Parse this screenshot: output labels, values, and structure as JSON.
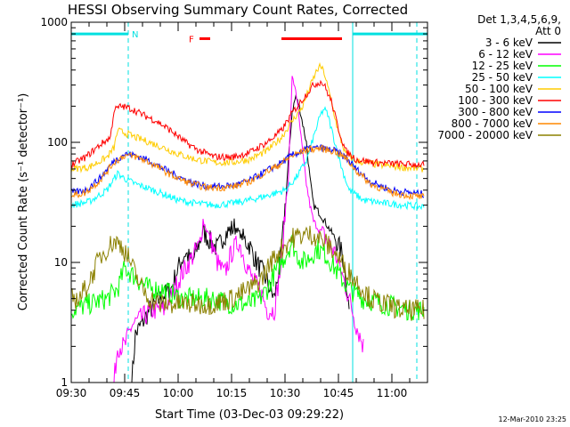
{
  "chart_data": {
    "type": "line",
    "title": "HESSI Observing Summary Count Rates, Corrected",
    "xlabel": "Start Time (03-Dec-03 09:29:22)",
    "ylabel": "Corrected Count Rate (s⁻¹ detector⁻¹)",
    "yscale": "log",
    "ylim": [
      1,
      1000
    ],
    "xlim_minutes": [
      0,
      100
    ],
    "x_ticks": [
      {
        "m": 0,
        "label": "09:30"
      },
      {
        "m": 15,
        "label": "09:45"
      },
      {
        "m": 30,
        "label": "10:00"
      },
      {
        "m": 45,
        "label": "10:15"
      },
      {
        "m": 60,
        "label": "10:30"
      },
      {
        "m": 75,
        "label": "10:45"
      },
      {
        "m": 90,
        "label": "11:00"
      }
    ],
    "y_ticks": [
      {
        "v": 1,
        "label": "1"
      },
      {
        "v": 10,
        "label": "10"
      },
      {
        "v": 100,
        "label": "100"
      },
      {
        "v": 1000,
        "label": "1000"
      }
    ],
    "legend_header": [
      "Det 1,3,4,5,6,9,",
      "Att 0"
    ],
    "legend_position": "right",
    "timestamp": "12-Mar-2010 23:25",
    "flags": [
      {
        "label": "N",
        "color": "#00e0e0",
        "segments": [
          [
            0,
            16
          ],
          [
            79,
            100
          ]
        ],
        "level": 800,
        "vlines": [
          0,
          16,
          79,
          97
        ]
      },
      {
        "label": "F",
        "color": "#ff0000",
        "segments": [
          [
            36,
            39
          ],
          [
            59,
            76
          ]
        ],
        "level": 730,
        "vlines": []
      }
    ],
    "series": [
      {
        "name": "3 - 6 keV",
        "color": "#000000",
        "points": [
          [
            17,
            1
          ],
          [
            18,
            2.5
          ],
          [
            22,
            4
          ],
          [
            25,
            5
          ],
          [
            28,
            6
          ],
          [
            30,
            9
          ],
          [
            32,
            12
          ],
          [
            34,
            10
          ],
          [
            37,
            18
          ],
          [
            39,
            15
          ],
          [
            41,
            13
          ],
          [
            43,
            17
          ],
          [
            46,
            20
          ],
          [
            48,
            16
          ],
          [
            50,
            14
          ],
          [
            52,
            10
          ],
          [
            54,
            8
          ],
          [
            57,
            5
          ],
          [
            59,
            12
          ],
          [
            61,
            70
          ],
          [
            62,
            180
          ],
          [
            63,
            240
          ],
          [
            64,
            200
          ],
          [
            66,
            100
          ],
          [
            67,
            50
          ],
          [
            68,
            30
          ],
          [
            70,
            25
          ],
          [
            72,
            20
          ],
          [
            74,
            16
          ],
          [
            76,
            12
          ],
          [
            77,
            8
          ],
          [
            78,
            4
          ]
        ]
      },
      {
        "name": "6 - 12 keV",
        "color": "#ff00ff",
        "points": [
          [
            12,
            1
          ],
          [
            13,
            2
          ],
          [
            15,
            2
          ],
          [
            17,
            3
          ],
          [
            20,
            3.5
          ],
          [
            23,
            4
          ],
          [
            26,
            4
          ],
          [
            29,
            6
          ],
          [
            31,
            8
          ],
          [
            33,
            10
          ],
          [
            36,
            14
          ],
          [
            37,
            22
          ],
          [
            39,
            16
          ],
          [
            41,
            10
          ],
          [
            43,
            8
          ],
          [
            45,
            12
          ],
          [
            47,
            15
          ],
          [
            49,
            10
          ],
          [
            51,
            7
          ],
          [
            53,
            6
          ],
          [
            55,
            4
          ],
          [
            57,
            4
          ],
          [
            59,
            10
          ],
          [
            61,
            60
          ],
          [
            62,
            340
          ],
          [
            63,
            280
          ],
          [
            64,
            150
          ],
          [
            65,
            80
          ],
          [
            66,
            45
          ],
          [
            67,
            30
          ],
          [
            68,
            22
          ],
          [
            70,
            18
          ],
          [
            72,
            15
          ],
          [
            74,
            12
          ],
          [
            76,
            8
          ],
          [
            78,
            5
          ],
          [
            80,
            3
          ],
          [
            82,
            2
          ]
        ]
      },
      {
        "name": "12 - 25 keV",
        "color": "#00ff00",
        "points": [
          [
            0,
            4
          ],
          [
            5,
            4.5
          ],
          [
            10,
            5
          ],
          [
            13,
            6
          ],
          [
            15,
            9
          ],
          [
            17,
            8
          ],
          [
            19,
            7
          ],
          [
            22,
            6
          ],
          [
            25,
            6
          ],
          [
            28,
            5.5
          ],
          [
            31,
            5
          ],
          [
            35,
            5
          ],
          [
            40,
            5
          ],
          [
            45,
            4.5
          ],
          [
            50,
            4.5
          ],
          [
            53,
            5
          ],
          [
            55,
            6
          ],
          [
            57,
            8
          ],
          [
            59,
            10
          ],
          [
            61,
            13
          ],
          [
            62,
            15
          ],
          [
            63,
            12
          ],
          [
            65,
            10
          ],
          [
            67,
            11
          ],
          [
            69,
            13
          ],
          [
            71,
            12
          ],
          [
            73,
            10
          ],
          [
            75,
            8
          ],
          [
            78,
            6
          ],
          [
            82,
            5
          ],
          [
            88,
            4.5
          ],
          [
            95,
            4
          ],
          [
            99,
            4
          ]
        ]
      },
      {
        "name": "25 - 50 keV",
        "color": "#00ffff",
        "points": [
          [
            0,
            30
          ],
          [
            5,
            32
          ],
          [
            10,
            40
          ],
          [
            13,
            55
          ],
          [
            15,
            50
          ],
          [
            18,
            45
          ],
          [
            21,
            42
          ],
          [
            25,
            38
          ],
          [
            30,
            33
          ],
          [
            35,
            31
          ],
          [
            40,
            30
          ],
          [
            45,
            31
          ],
          [
            50,
            33
          ],
          [
            55,
            36
          ],
          [
            60,
            40
          ],
          [
            63,
            50
          ],
          [
            66,
            70
          ],
          [
            68,
            110
          ],
          [
            70,
            170
          ],
          [
            71,
            190
          ],
          [
            72,
            170
          ],
          [
            74,
            100
          ],
          [
            76,
            60
          ],
          [
            78,
            40
          ],
          [
            82,
            33
          ],
          [
            88,
            31
          ],
          [
            94,
            30
          ],
          [
            99,
            29
          ]
        ]
      },
      {
        "name": "50 - 100 keV",
        "color": "#ffcc00",
        "points": [
          [
            0,
            60
          ],
          [
            5,
            62
          ],
          [
            10,
            75
          ],
          [
            12,
            90
          ],
          [
            13,
            125
          ],
          [
            15,
            120
          ],
          [
            18,
            110
          ],
          [
            22,
            100
          ],
          [
            26,
            90
          ],
          [
            30,
            80
          ],
          [
            35,
            72
          ],
          [
            40,
            68
          ],
          [
            45,
            68
          ],
          [
            50,
            72
          ],
          [
            55,
            85
          ],
          [
            59,
            110
          ],
          [
            62,
            150
          ],
          [
            65,
            200
          ],
          [
            67,
            290
          ],
          [
            69,
            400
          ],
          [
            70,
            430
          ],
          [
            71,
            380
          ],
          [
            73,
            220
          ],
          [
            75,
            120
          ],
          [
            77,
            80
          ],
          [
            80,
            70
          ],
          [
            86,
            65
          ],
          [
            93,
            62
          ],
          [
            99,
            60
          ]
        ]
      },
      {
        "name": "100 - 300 keV",
        "color": "#ff0000",
        "points": [
          [
            0,
            65
          ],
          [
            4,
            75
          ],
          [
            8,
            95
          ],
          [
            11,
            110
          ],
          [
            12,
            185
          ],
          [
            14,
            200
          ],
          [
            17,
            190
          ],
          [
            20,
            170
          ],
          [
            24,
            150
          ],
          [
            28,
            125
          ],
          [
            32,
            100
          ],
          [
            36,
            85
          ],
          [
            40,
            76
          ],
          [
            45,
            75
          ],
          [
            50,
            82
          ],
          [
            55,
            100
          ],
          [
            59,
            125
          ],
          [
            62,
            175
          ],
          [
            65,
            230
          ],
          [
            68,
            300
          ],
          [
            70,
            320
          ],
          [
            71,
            300
          ],
          [
            73,
            220
          ],
          [
            75,
            130
          ],
          [
            77,
            85
          ],
          [
            80,
            72
          ],
          [
            85,
            68
          ],
          [
            92,
            66
          ],
          [
            99,
            65
          ]
        ]
      },
      {
        "name": "300 - 800 keV",
        "color": "#0000ff",
        "points": [
          [
            0,
            38
          ],
          [
            4,
            40
          ],
          [
            8,
            50
          ],
          [
            12,
            70
          ],
          [
            15,
            80
          ],
          [
            18,
            78
          ],
          [
            22,
            70
          ],
          [
            26,
            60
          ],
          [
            30,
            52
          ],
          [
            34,
            46
          ],
          [
            38,
            43
          ],
          [
            42,
            43
          ],
          [
            46,
            44
          ],
          [
            50,
            48
          ],
          [
            54,
            56
          ],
          [
            58,
            65
          ],
          [
            62,
            78
          ],
          [
            66,
            88
          ],
          [
            70,
            90
          ],
          [
            74,
            85
          ],
          [
            77,
            75
          ],
          [
            80,
            60
          ],
          [
            84,
            47
          ],
          [
            90,
            40
          ],
          [
            95,
            38
          ],
          [
            99,
            37
          ]
        ]
      },
      {
        "name": "800 - 7000 keV",
        "color": "#ff8800",
        "points": [
          [
            0,
            36
          ],
          [
            4,
            38
          ],
          [
            8,
            48
          ],
          [
            12,
            68
          ],
          [
            15,
            78
          ],
          [
            18,
            76
          ],
          [
            22,
            68
          ],
          [
            26,
            58
          ],
          [
            30,
            50
          ],
          [
            34,
            45
          ],
          [
            38,
            42
          ],
          [
            42,
            42
          ],
          [
            46,
            43
          ],
          [
            50,
            47
          ],
          [
            54,
            55
          ],
          [
            58,
            64
          ],
          [
            62,
            77
          ],
          [
            66,
            87
          ],
          [
            70,
            89
          ],
          [
            74,
            84
          ],
          [
            77,
            74
          ],
          [
            80,
            58
          ],
          [
            84,
            45
          ],
          [
            90,
            38
          ],
          [
            95,
            36
          ],
          [
            99,
            35
          ]
        ]
      },
      {
        "name": "7000 - 20000 keV",
        "color": "#8b8000",
        "points": [
          [
            0,
            5
          ],
          [
            2,
            5
          ],
          [
            4,
            6
          ],
          [
            6,
            8
          ],
          [
            8,
            11
          ],
          [
            10,
            13
          ],
          [
            12,
            15
          ],
          [
            14,
            14
          ],
          [
            16,
            11
          ],
          [
            18,
            8
          ],
          [
            20,
            6
          ],
          [
            22,
            5
          ],
          [
            25,
            4.5
          ],
          [
            30,
            4.5
          ],
          [
            35,
            4.5
          ],
          [
            40,
            4.5
          ],
          [
            45,
            5
          ],
          [
            50,
            6
          ],
          [
            53,
            7
          ],
          [
            56,
            10
          ],
          [
            59,
            13
          ],
          [
            62,
            16
          ],
          [
            65,
            17
          ],
          [
            68,
            17
          ],
          [
            71,
            15
          ],
          [
            74,
            12
          ],
          [
            77,
            9
          ],
          [
            80,
            7
          ],
          [
            84,
            5
          ],
          [
            88,
            4.5
          ],
          [
            93,
            4
          ],
          [
            97,
            4
          ],
          [
            99,
            4
          ]
        ]
      }
    ]
  }
}
